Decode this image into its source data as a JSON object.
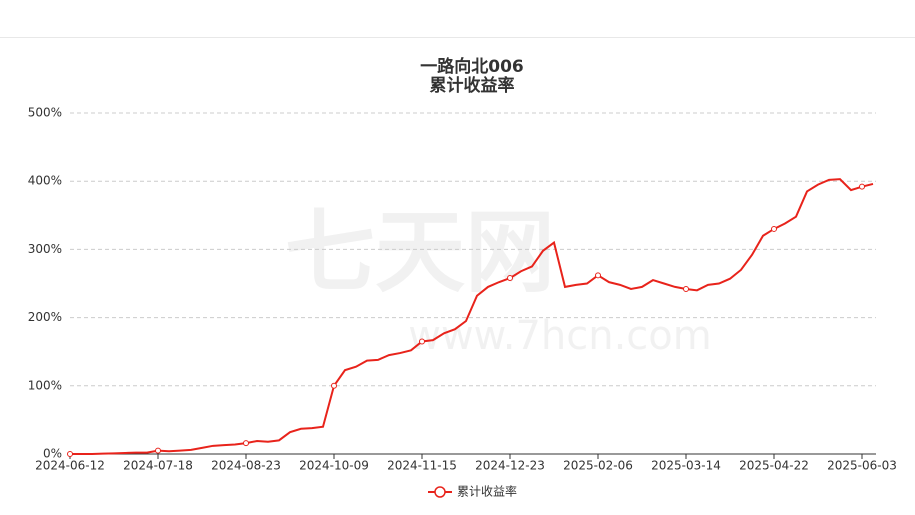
{
  "chart_data": {
    "type": "line",
    "title": "一路向北006",
    "subtitle": "累计收益率",
    "watermark": {
      "brand": "七天网",
      "url": "www.7hcn.com"
    },
    "categories": [
      "2024-06-12",
      null,
      null,
      null,
      null,
      null,
      null,
      null,
      "2024-07-18",
      null,
      null,
      null,
      null,
      null,
      null,
      null,
      "2024-08-23",
      null,
      null,
      null,
      null,
      null,
      null,
      null,
      "2024-10-09",
      null,
      null,
      null,
      null,
      null,
      null,
      null,
      "2024-11-15",
      null,
      null,
      null,
      null,
      null,
      null,
      null,
      "2024-12-23",
      null,
      null,
      null,
      null,
      null,
      null,
      null,
      "2025-02-06",
      null,
      null,
      null,
      null,
      null,
      null,
      null,
      "2025-03-14",
      null,
      null,
      null,
      null,
      null,
      null,
      null,
      "2025-04-22",
      null,
      null,
      null,
      null,
      null,
      null,
      null,
      "2025-06-03",
      null
    ],
    "series": [
      {
        "name": "累计收益率",
        "color": "#e8231b",
        "values": [
          0,
          0,
          0,
          0.5,
          1,
          1.5,
          2,
          2,
          5,
          4,
          5,
          6,
          9,
          12,
          13,
          14,
          16,
          19,
          18,
          20,
          32,
          37,
          38,
          40,
          100,
          123,
          128,
          137,
          138,
          145,
          148,
          152,
          165,
          167,
          177,
          183,
          195,
          232,
          245,
          252,
          258,
          268,
          275,
          298,
          310,
          245,
          248,
          250,
          262,
          252,
          248,
          242,
          245,
          255,
          250,
          245,
          242,
          240,
          248,
          250,
          257,
          270,
          292,
          320,
          330,
          338,
          348,
          385,
          395,
          402,
          403,
          387,
          392,
          396
        ]
      }
    ],
    "ylim": [
      0,
      500
    ],
    "yticks": [
      {
        "value": 0,
        "label": "0%"
      },
      {
        "value": 100,
        "label": "100%"
      },
      {
        "value": 200,
        "label": "200%"
      },
      {
        "value": 300,
        "label": "300%"
      },
      {
        "value": 400,
        "label": "400%"
      },
      {
        "value": 500,
        "label": "500%"
      }
    ],
    "grid": true,
    "legend": "bottom"
  }
}
